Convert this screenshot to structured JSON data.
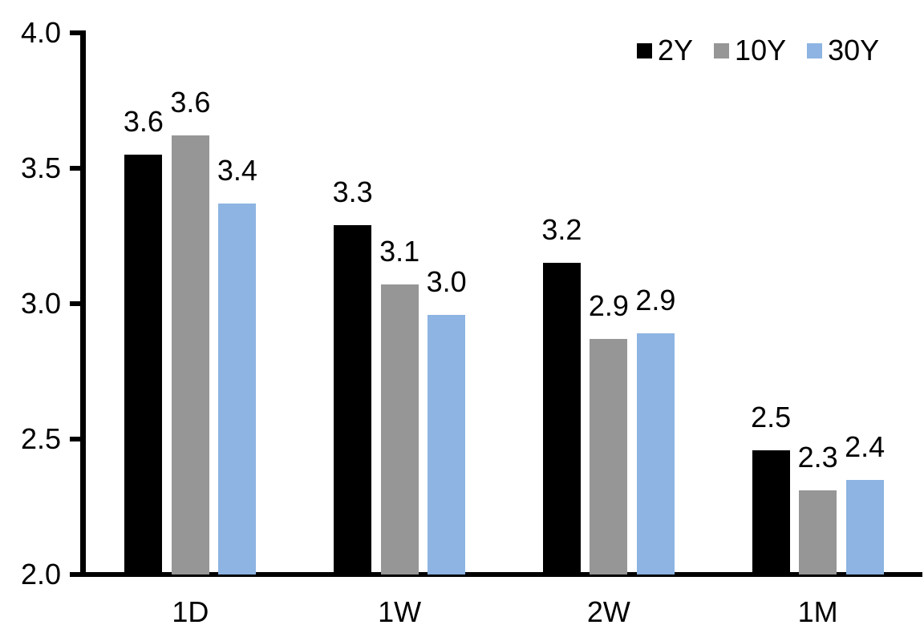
{
  "chart_data": {
    "type": "bar",
    "title": "",
    "xlabel": "",
    "ylabel": "",
    "categories": [
      "1D",
      "1W",
      "2W",
      "1M"
    ],
    "series": [
      {
        "name": "2Y",
        "color": "#000000",
        "values": [
          3.55,
          3.29,
          3.15,
          2.46
        ],
        "labels": [
          "3.6",
          "3.3",
          "3.2",
          "2.5"
        ]
      },
      {
        "name": "10Y",
        "color": "#969696",
        "values": [
          3.62,
          3.07,
          2.87,
          2.31
        ],
        "labels": [
          "3.6",
          "3.1",
          "2.9",
          "2.3"
        ]
      },
      {
        "name": "30Y",
        "color": "#8DB4E2",
        "values": [
          3.37,
          2.96,
          2.89,
          2.35
        ],
        "labels": [
          "3.4",
          "3.0",
          "2.9",
          "2.4"
        ]
      }
    ],
    "y_axis": {
      "min": 2.0,
      "max": 4.0,
      "tick_step": 0.5,
      "tick_labels": [
        "4.0",
        "3.5",
        "3.0",
        "2.5",
        "2.0"
      ]
    },
    "legend": {
      "position": "top-right",
      "entries": [
        "2Y",
        "10Y",
        "30Y"
      ]
    },
    "grid": false,
    "axis_color": "#000000",
    "text_color": "#000000",
    "data_labels_shown": true
  }
}
